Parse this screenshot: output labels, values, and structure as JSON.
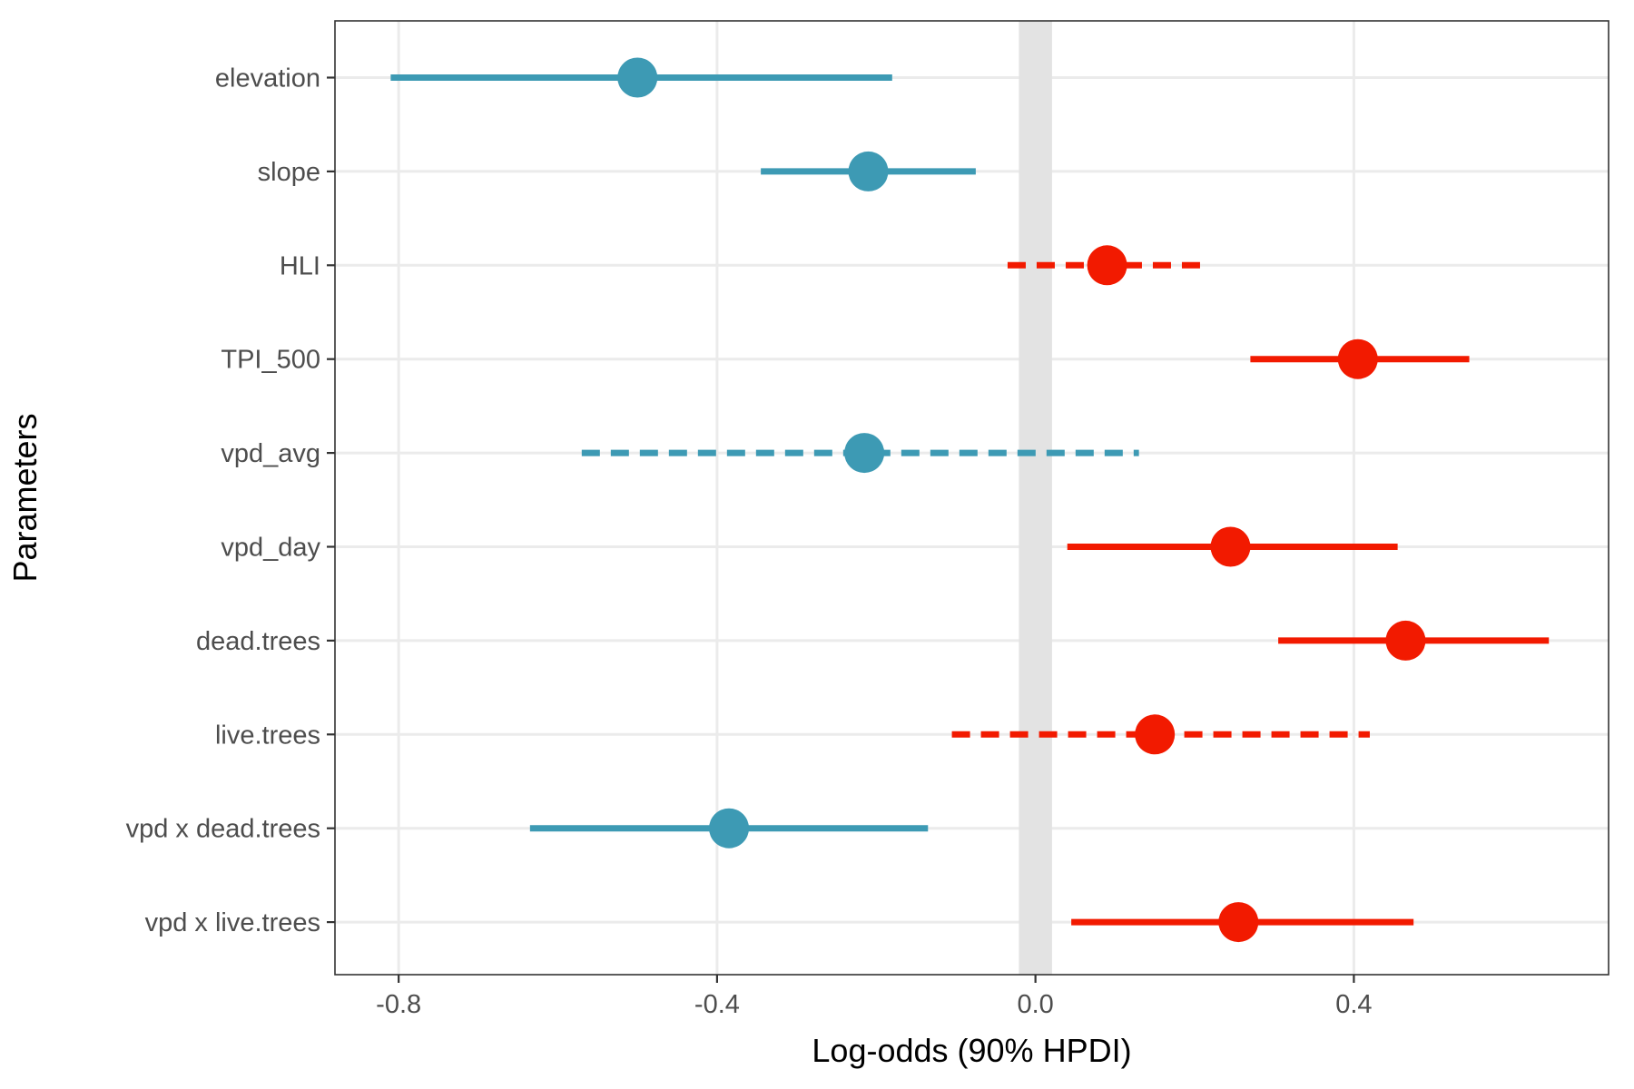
{
  "chart_data": {
    "type": "forest",
    "xlabel": "Log-odds (90% HPDI)",
    "ylabel": "Parameters",
    "xlim": [
      -0.88,
      0.72
    ],
    "xticks": [
      -0.8,
      -0.4,
      0.0,
      0.4
    ],
    "xtick_labels": [
      "-0.8",
      "-0.4",
      "0.0",
      "0.4"
    ],
    "grid": true,
    "zero_band": {
      "from": -0.01,
      "to": 0.01,
      "color": "#e3e3e3"
    },
    "colors": {
      "negative": "#3d9ab4",
      "positive": "#f21a00"
    },
    "parameters": [
      {
        "label": "elevation",
        "estimate": -0.5,
        "lower": -0.81,
        "upper": -0.18,
        "direction": "negative",
        "credible": true
      },
      {
        "label": "slope",
        "estimate": -0.21,
        "lower": -0.345,
        "upper": -0.075,
        "direction": "negative",
        "credible": true
      },
      {
        "label": "HLI",
        "estimate": 0.09,
        "lower": -0.035,
        "upper": 0.21,
        "direction": "positive",
        "credible": false
      },
      {
        "label": "TPI_500",
        "estimate": 0.405,
        "lower": 0.27,
        "upper": 0.545,
        "direction": "positive",
        "credible": true
      },
      {
        "label": "vpd_avg",
        "estimate": -0.215,
        "lower": -0.57,
        "upper": 0.13,
        "direction": "negative",
        "credible": false
      },
      {
        "label": "vpd_day",
        "estimate": 0.245,
        "lower": 0.04,
        "upper": 0.455,
        "direction": "positive",
        "credible": true
      },
      {
        "label": "dead.trees",
        "estimate": 0.465,
        "lower": 0.305,
        "upper": 0.645,
        "direction": "positive",
        "credible": true
      },
      {
        "label": "live.trees",
        "estimate": 0.15,
        "lower": -0.105,
        "upper": 0.42,
        "direction": "positive",
        "credible": false
      },
      {
        "label": "vpd x dead.trees",
        "estimate": -0.385,
        "lower": -0.635,
        "upper": -0.135,
        "direction": "negative",
        "credible": true
      },
      {
        "label": "vpd x live.trees",
        "estimate": 0.255,
        "lower": 0.045,
        "upper": 0.475,
        "direction": "positive",
        "credible": true
      }
    ]
  }
}
